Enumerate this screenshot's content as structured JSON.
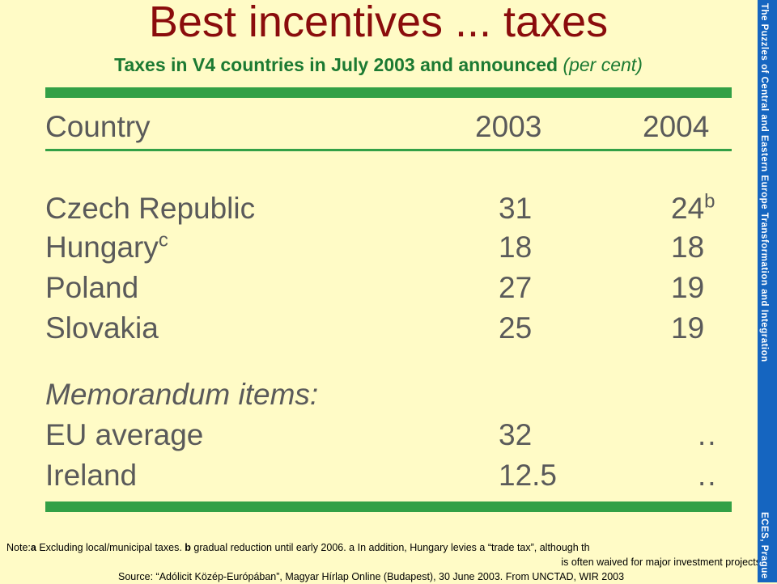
{
  "slide": {
    "title": "Best incentives ... taxes",
    "subtitle": "Taxes in V4 countries in July 2003 and announced",
    "subtitle_unit": "(per cent)"
  },
  "table": {
    "headers": [
      "Country",
      "2003",
      "2004"
    ],
    "rows": [
      {
        "country": "Czech Republic",
        "country_sup": "",
        "y2003": "31",
        "y2004": "24",
        "y2004_sup": "b"
      },
      {
        "country": "Hungary",
        "country_sup": "c",
        "y2003": "18",
        "y2004": "18",
        "y2004_sup": ""
      },
      {
        "country": "Poland",
        "country_sup": "",
        "y2003": "27",
        "y2004": "19",
        "y2004_sup": ""
      },
      {
        "country": "Slovakia",
        "country_sup": "",
        "y2003": "25",
        "y2004": "19",
        "y2004_sup": ""
      }
    ],
    "memo_label": "Memorandum items:",
    "memo_rows": [
      {
        "country": "EU average",
        "y2003": "32",
        "y2004": ".."
      },
      {
        "country": "Ireland",
        "y2003": "12.5",
        "y2004": ".."
      }
    ],
    "colors": {
      "rule": "#33a046",
      "text": "#5a5a5a"
    }
  },
  "notes": {
    "line1_prefix": "Note:",
    "line1_a": "a",
    "line1_a_text": " Excluding local/municipal taxes. ",
    "line1_b": "b",
    "line1_b_text": "  gradual reduction until early 2006. a  In addition, Hungary levies a “trade tax”,  although th",
    "line2": "is often waived for major investment projects",
    "line3": "Source:  “Adólicit Közép-Európában”, Magyar Hírlap Online (Budapest), 30 June 2003. From UNCTAD, WIR 2003"
  },
  "sidebar": {
    "text_top": "The Puzzles of Central and Eastern Europe Transformation and Integration",
    "text_bottom": "ECES, Prague",
    "color": "#1565c0"
  },
  "colors": {
    "background": "#fffbc6",
    "title": "#8a0c0c",
    "subtitle": "#1c7a32"
  }
}
